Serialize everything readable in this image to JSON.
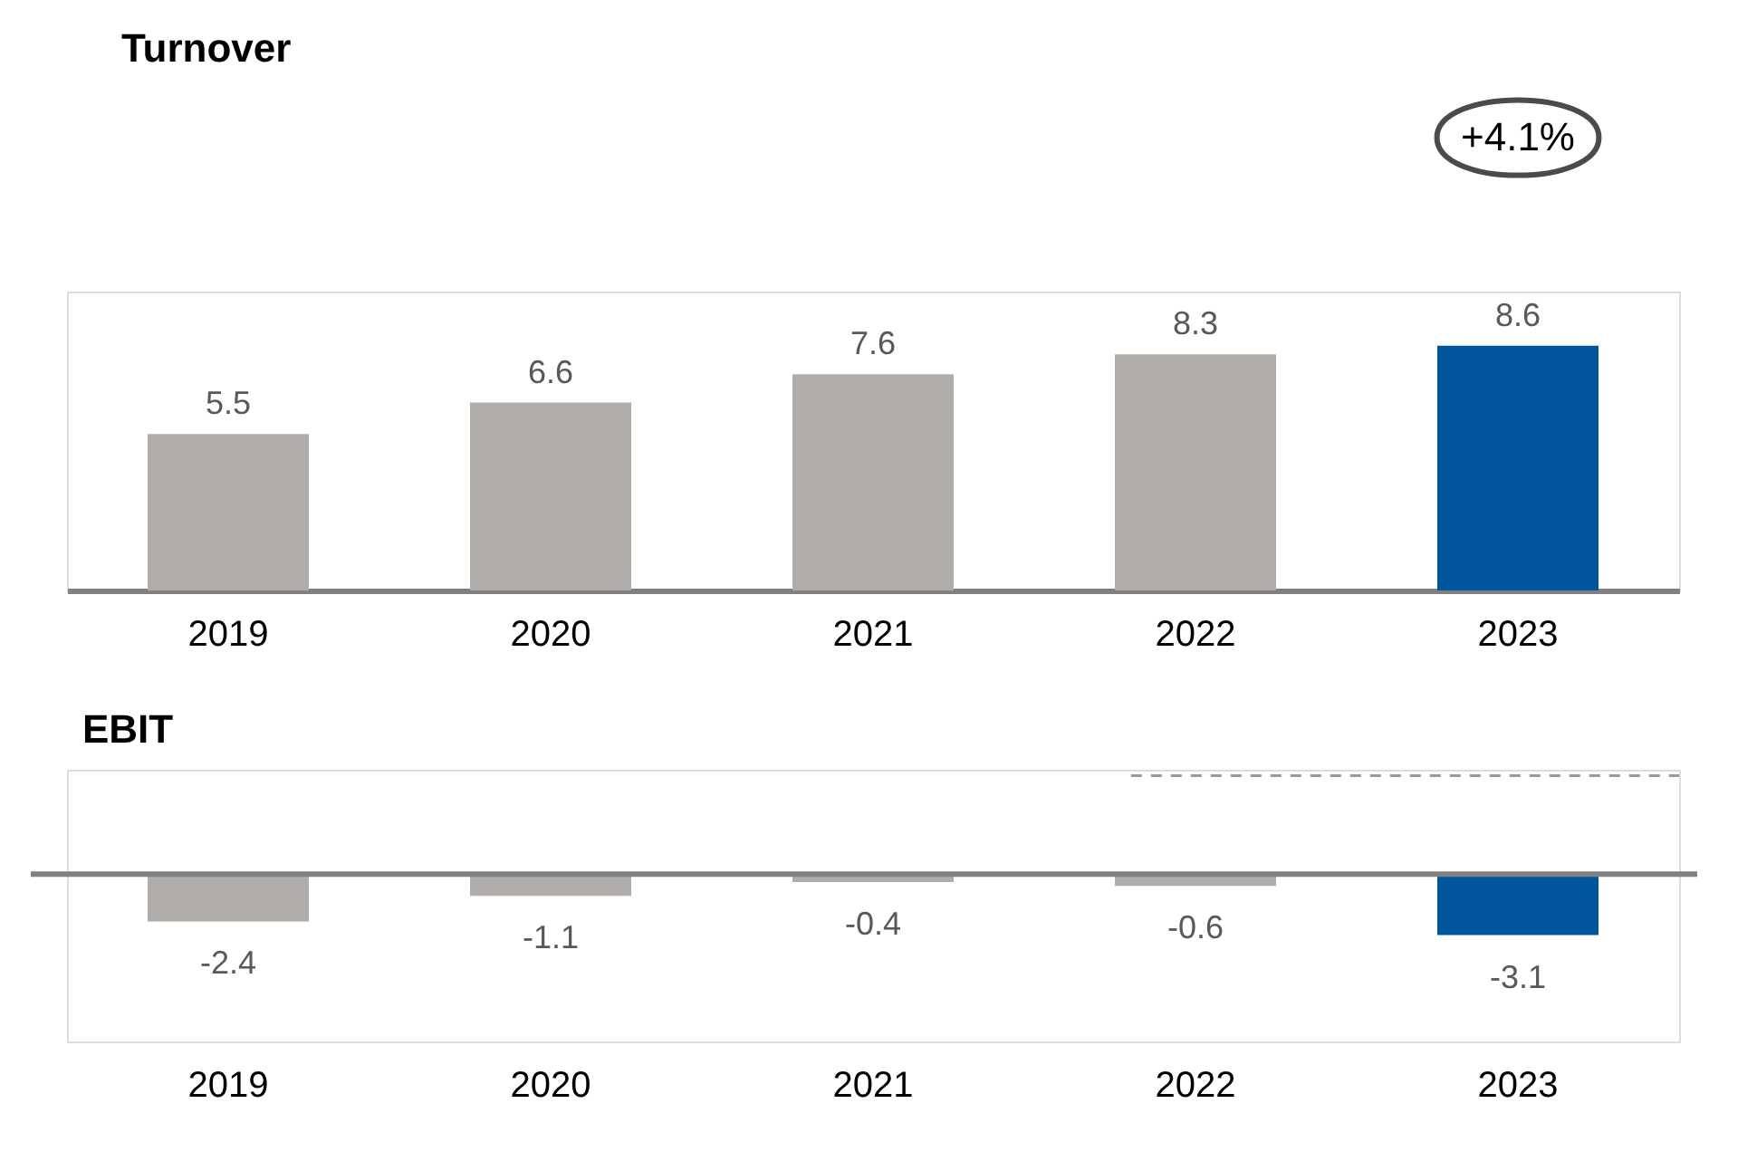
{
  "chart_data": [
    {
      "type": "bar",
      "title": "Turnover",
      "categories": [
        "2019",
        "2020",
        "2021",
        "2022",
        "2023"
      ],
      "values": [
        5.5,
        6.6,
        7.6,
        8.3,
        8.6
      ],
      "colors": [
        "#b0acaa",
        "#b0acaa",
        "#b0acaa",
        "#b0acaa",
        "#00579d"
      ],
      "ylim": [
        0,
        10.5
      ],
      "tick_labels": "x",
      "data_labels": true,
      "grid": false,
      "annotations": [
        "+4.1%"
      ]
    },
    {
      "type": "bar",
      "title": "EBIT",
      "categories": [
        "2019",
        "2020",
        "2021",
        "2022",
        "2023"
      ],
      "values": [
        -2.4,
        -1.1,
        -0.4,
        -0.6,
        -3.1
      ],
      "colors": [
        "#b0acaa",
        "#b0acaa",
        "#b0acaa",
        "#b0acaa",
        "#00579d"
      ],
      "ylim": [
        -8.5,
        5.3
      ],
      "tick_labels": "x",
      "data_labels": true,
      "grid": false,
      "ref_lines": [
        {
          "axis": "y",
          "value": 5,
          "label": null,
          "color": "#999999",
          "line_style": "dashed"
        }
      ]
    }
  ]
}
